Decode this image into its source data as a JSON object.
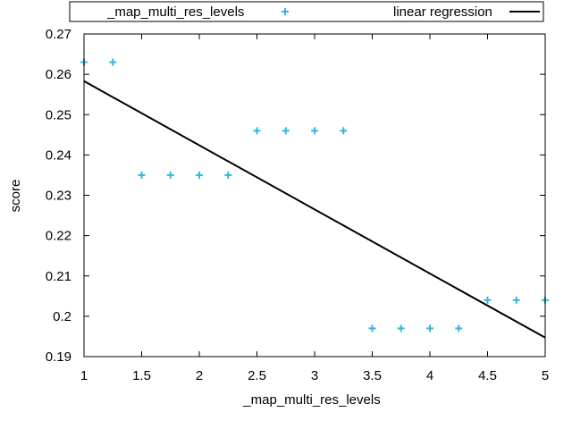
{
  "chart_data": {
    "type": "scatter",
    "title": "",
    "xlabel": "_map_multi_res_levels",
    "ylabel": "score",
    "xlim": [
      1,
      5
    ],
    "ylim": [
      0.19,
      0.27
    ],
    "x_ticks": [
      1,
      1.5,
      2,
      2.5,
      3,
      3.5,
      4,
      4.5,
      5
    ],
    "x_tick_labels": [
      "1",
      "1.5",
      "2",
      "2.5",
      "3",
      "3.5",
      "4",
      "4.5",
      "5"
    ],
    "y_ticks": [
      0.19,
      0.2,
      0.21,
      0.22,
      0.23,
      0.24,
      0.25,
      0.26,
      0.27
    ],
    "y_tick_labels": [
      "0.19",
      "0.2",
      "0.21",
      "0.22",
      "0.23",
      "0.24",
      "0.25",
      "0.26",
      "0.27"
    ],
    "grid": false,
    "legend_position": "top",
    "series": [
      {
        "name": "_map_multi_res_levels",
        "kind": "points",
        "marker": "plus",
        "color": "#33b7e0",
        "x": [
          1,
          1.25,
          1.5,
          1.75,
          2,
          2.25,
          2.5,
          2.75,
          3,
          3.25,
          3.5,
          3.75,
          4,
          4.25,
          4.5,
          4.75,
          5
        ],
        "y": [
          0.263,
          0.263,
          0.235,
          0.235,
          0.235,
          0.235,
          0.246,
          0.246,
          0.246,
          0.246,
          0.197,
          0.197,
          0.197,
          0.197,
          0.204,
          0.204,
          0.204
        ]
      },
      {
        "name": "linear regression",
        "kind": "line",
        "color": "#000000",
        "x": [
          1,
          5
        ],
        "y": [
          0.2583,
          0.1947
        ]
      }
    ]
  }
}
